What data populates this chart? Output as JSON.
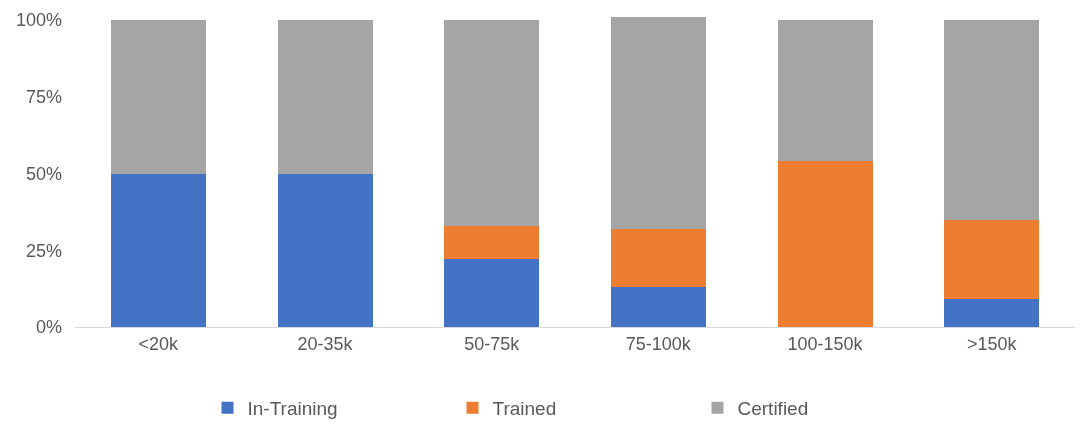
{
  "chart_data": {
    "type": "bar",
    "stacked": true,
    "categories": [
      "<20k",
      "20-35k",
      "50-75k",
      "75-100k",
      "100-150k",
      ">150k"
    ],
    "series": [
      {
        "name": "In-Training",
        "color": "#4472c4",
        "values": [
          50,
          50,
          22,
          13,
          0,
          9
        ]
      },
      {
        "name": "Trained",
        "color": "#ed7d31",
        "values": [
          0,
          0,
          11,
          19,
          54,
          26
        ]
      },
      {
        "name": "Certified",
        "color": "#a5a5a5",
        "values": [
          50,
          50,
          67,
          69,
          46,
          65
        ]
      }
    ],
    "ylim": [
      0,
      101
    ],
    "yticks": [
      {
        "value": 0,
        "label": "0%"
      },
      {
        "value": 25,
        "label": "25%"
      },
      {
        "value": 50,
        "label": "50%"
      },
      {
        "value": 75,
        "label": "75%"
      },
      {
        "value": 100,
        "label": "100%"
      }
    ],
    "grid": false,
    "legend": "bottom"
  }
}
